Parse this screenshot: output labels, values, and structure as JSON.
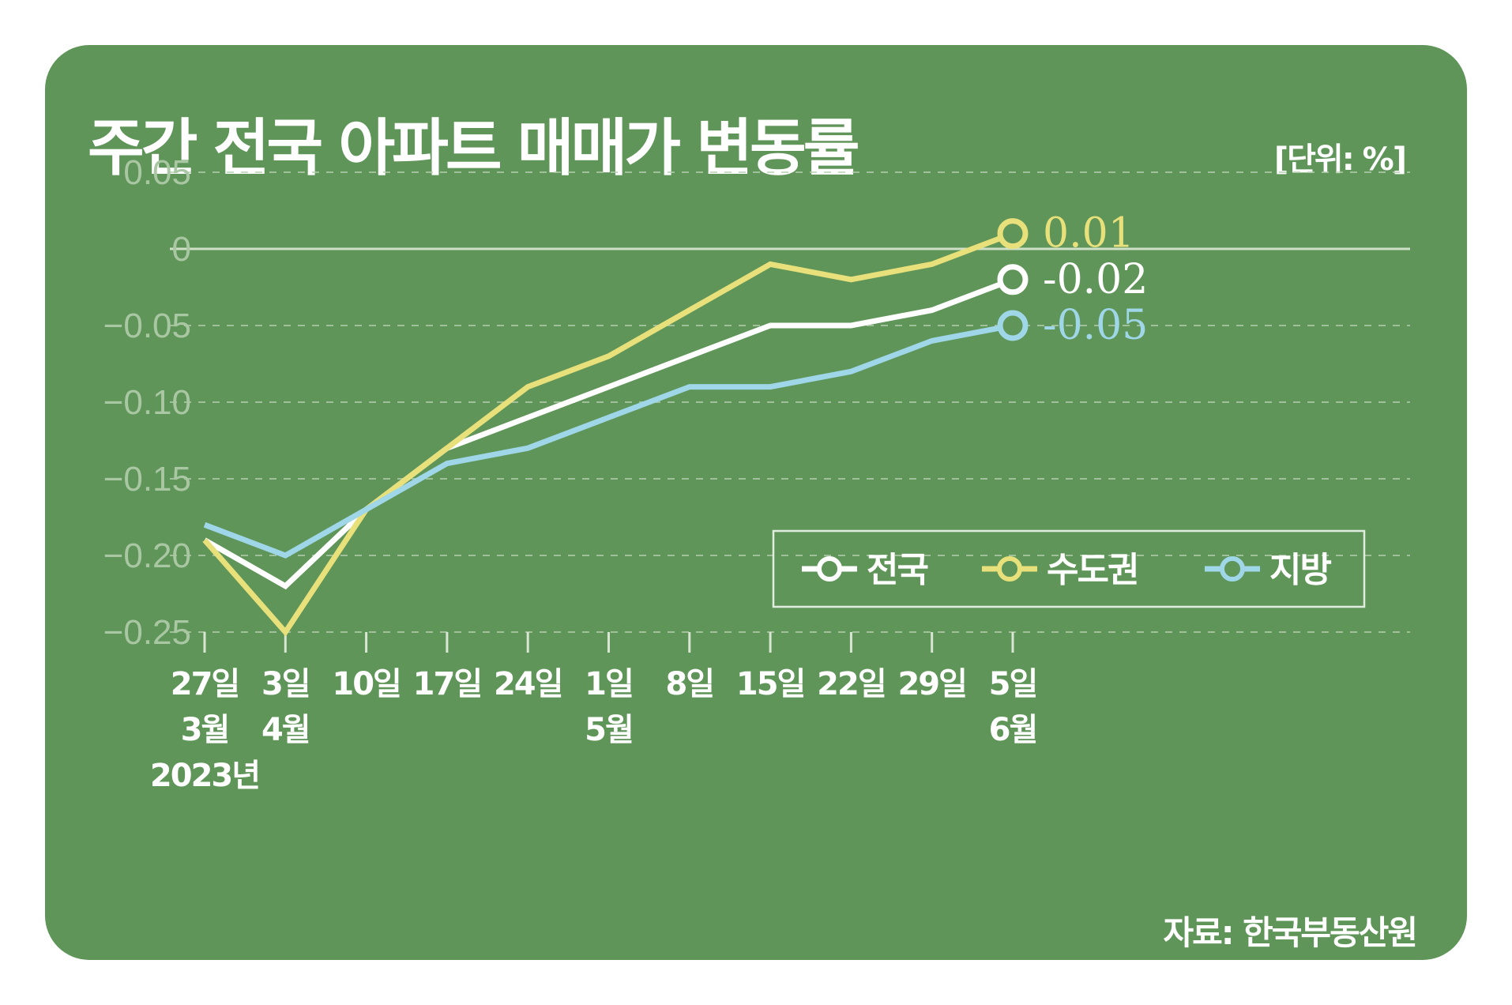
{
  "title": "주간 전국 아파트 매매가 변동률",
  "unit": "[단위: %]",
  "source": "자료: 한국부동산원",
  "colors": {
    "background": "#5f9558",
    "national": "#ffffff",
    "capital": "#e8e07a",
    "regional": "#9fd6e8",
    "grid": "#b5cfae"
  },
  "chart_data": {
    "type": "line",
    "title": "주간 전국 아파트 매매가 변동률",
    "ylabel": "[단위: %]",
    "xlabel": "",
    "ylim": [
      -0.25,
      0.05
    ],
    "yticks": [
      0.05,
      0,
      -0.05,
      -0.1,
      -0.15,
      -0.2,
      -0.25
    ],
    "ytick_labels": [
      "0.05",
      "0",
      "−0.05",
      "−0.10",
      "−0.15",
      "−0.20",
      "−0.25"
    ],
    "categories": [
      [
        "27일",
        "3월",
        "2023년"
      ],
      [
        "3일",
        "4월"
      ],
      [
        "10일"
      ],
      [
        "17일"
      ],
      [
        "24일"
      ],
      [
        "1일",
        "5월"
      ],
      [
        "8일"
      ],
      [
        "15일"
      ],
      [
        "22일"
      ],
      [
        "29일"
      ],
      [
        "5일",
        "6월"
      ]
    ],
    "series": [
      {
        "name": "전국",
        "color": "#ffffff",
        "end_label": "-0.02",
        "values": [
          -0.19,
          -0.22,
          -0.17,
          -0.13,
          -0.11,
          -0.09,
          -0.07,
          -0.05,
          -0.05,
          -0.04,
          -0.02
        ]
      },
      {
        "name": "수도권",
        "color": "#e8e07a",
        "end_label": "0.01",
        "values": [
          -0.19,
          -0.25,
          -0.17,
          -0.13,
          -0.09,
          -0.07,
          -0.04,
          -0.01,
          -0.02,
          -0.01,
          0.01
        ]
      },
      {
        "name": "지방",
        "color": "#9fd6e8",
        "end_label": "-0.05",
        "values": [
          -0.18,
          -0.2,
          -0.17,
          -0.14,
          -0.13,
          -0.11,
          -0.09,
          -0.09,
          -0.08,
          -0.06,
          -0.05
        ]
      }
    ],
    "legend": {
      "position": "lower-right",
      "entries": [
        "전국",
        "수도권",
        "지방"
      ]
    },
    "grid": true
  }
}
